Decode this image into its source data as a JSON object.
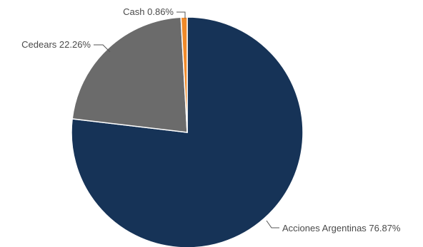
{
  "chart_data": {
    "type": "pie",
    "slices": [
      {
        "label": "Acciones Argentinas 76.87%",
        "value": 76.87,
        "color": "#163357"
      },
      {
        "label": "Cedears 22.26%",
        "value": 22.26,
        "color": "#6b6b6b"
      },
      {
        "label": "Cash 0.86%",
        "value": 0.86,
        "color": "#f08a2a"
      }
    ],
    "start_angle_deg": 0,
    "direction": "clockwise",
    "legend": "none"
  }
}
